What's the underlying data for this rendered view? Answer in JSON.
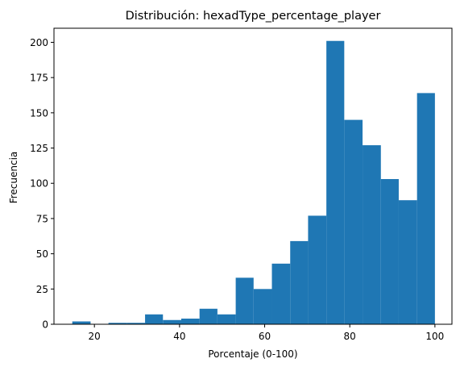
{
  "chart_data": {
    "type": "bar",
    "title": "Distribución: hexadType_percentage_player",
    "xlabel": "Porcentaje (0-100)",
    "ylabel": "Frecuencia",
    "xlim": [
      10.5,
      104.0
    ],
    "ylim": [
      0,
      210
    ],
    "xticks": [
      20,
      40,
      60,
      80,
      100
    ],
    "yticks": [
      0,
      25,
      50,
      75,
      100,
      125,
      150,
      175,
      200
    ],
    "bar_color": "#1f77b4",
    "grid": false,
    "bins": [
      {
        "x0": 14.8,
        "x1": 19.1,
        "value": 2
      },
      {
        "x0": 19.1,
        "x1": 23.3,
        "value": 0
      },
      {
        "x0": 23.3,
        "x1": 27.6,
        "value": 1
      },
      {
        "x0": 27.6,
        "x1": 31.9,
        "value": 1
      },
      {
        "x0": 31.9,
        "x1": 36.1,
        "value": 7
      },
      {
        "x0": 36.1,
        "x1": 40.4,
        "value": 3
      },
      {
        "x0": 40.4,
        "x1": 44.7,
        "value": 4
      },
      {
        "x0": 44.7,
        "x1": 48.9,
        "value": 11
      },
      {
        "x0": 48.9,
        "x1": 53.2,
        "value": 7
      },
      {
        "x0": 53.2,
        "x1": 57.4,
        "value": 33
      },
      {
        "x0": 57.4,
        "x1": 61.7,
        "value": 25
      },
      {
        "x0": 61.7,
        "x1": 66.0,
        "value": 43
      },
      {
        "x0": 66.0,
        "x1": 70.2,
        "value": 59
      },
      {
        "x0": 70.2,
        "x1": 74.5,
        "value": 77
      },
      {
        "x0": 74.5,
        "x1": 78.7,
        "value": 201
      },
      {
        "x0": 78.7,
        "x1": 83.0,
        "value": 145
      },
      {
        "x0": 83.0,
        "x1": 87.3,
        "value": 127
      },
      {
        "x0": 87.3,
        "x1": 91.5,
        "value": 103
      },
      {
        "x0": 91.5,
        "x1": 95.8,
        "value": 88
      },
      {
        "x0": 95.8,
        "x1": 100.0,
        "value": 164
      }
    ]
  }
}
